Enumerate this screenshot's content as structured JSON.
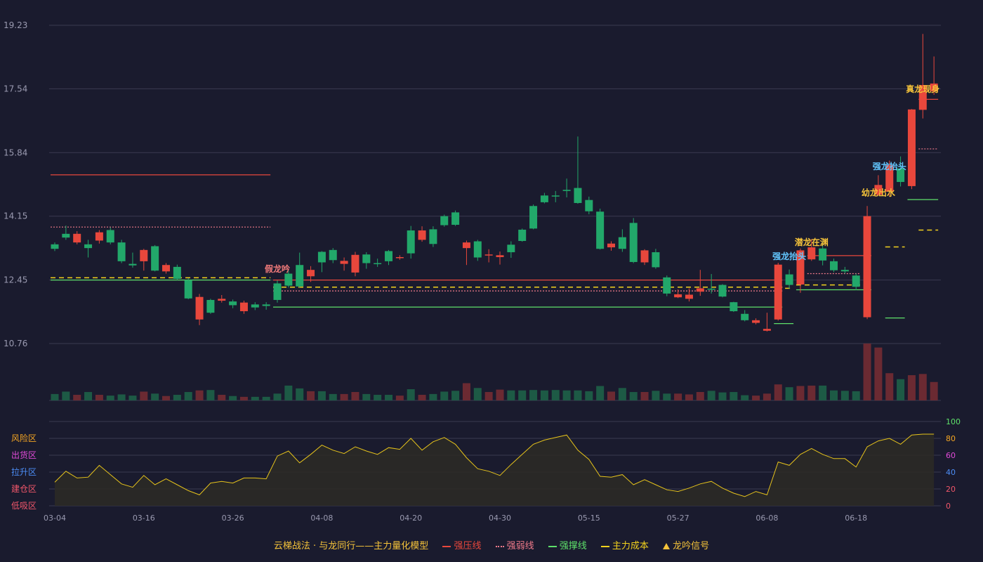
{
  "colors": {
    "background": "#1a1b2e",
    "up": "#e8473c",
    "down": "#22a86a",
    "up_volume": "#6b2a32",
    "down_volume": "#1d5a45",
    "strong_pressure": "#e8473c",
    "weak_line": "#f07a8a",
    "support": "#5ee06a",
    "main_cost": "#f3d21d",
    "osc_line": "#e6c31b",
    "osc_fill": "#2d2a25",
    "signal_gold": "#f5c33a",
    "signal_blue": "#63c7ff",
    "signal_pink": "#f07a7a",
    "axis_text": "#9a9ab0",
    "grid": "#3a3b50"
  },
  "chart_data": {
    "type": "candlestick",
    "price_axis": {
      "ticks": [
        "19.23",
        "17.54",
        "15.84",
        "14.15",
        "12.45",
        "10.76"
      ],
      "range": [
        10.76,
        19.23
      ]
    },
    "x_ticks": [
      {
        "index": 0,
        "label": "03-04"
      },
      {
        "index": 8,
        "label": "03-16"
      },
      {
        "index": 16,
        "label": "03-26"
      },
      {
        "index": 24,
        "label": "04-08"
      },
      {
        "index": 32,
        "label": "04-20"
      },
      {
        "index": 40,
        "label": "04-30"
      },
      {
        "index": 48,
        "label": "05-15"
      },
      {
        "index": 56,
        "label": "05-27"
      },
      {
        "index": 64,
        "label": "06-08"
      },
      {
        "index": 72,
        "label": "06-18"
      }
    ],
    "candles": [
      [
        13.4,
        13.28,
        13.45,
        13.22
      ],
      [
        13.68,
        13.58,
        13.9,
        13.52
      ],
      [
        13.45,
        13.68,
        13.75,
        13.4
      ],
      [
        13.4,
        13.3,
        13.52,
        13.05
      ],
      [
        13.5,
        13.72,
        13.78,
        13.42
      ],
      [
        13.78,
        13.45,
        13.85,
        13.4
      ],
      [
        13.45,
        12.95,
        13.52,
        12.9
      ],
      [
        12.88,
        12.84,
        13.18,
        12.78
      ],
      [
        12.95,
        13.25,
        13.28,
        12.7
      ],
      [
        13.35,
        12.7,
        13.38,
        12.68
      ],
      [
        12.68,
        12.85,
        12.9,
        12.62
      ],
      [
        12.8,
        12.48,
        12.86,
        12.45
      ],
      [
        12.45,
        11.96,
        12.5,
        11.94
      ],
      [
        11.4,
        12.0,
        12.08,
        11.25
      ],
      [
        11.92,
        11.58,
        11.95,
        11.55
      ],
      [
        11.9,
        11.95,
        12.05,
        11.85
      ],
      [
        11.88,
        11.78,
        11.93,
        11.7
      ],
      [
        11.62,
        11.85,
        11.9,
        11.55
      ],
      [
        11.8,
        11.72,
        11.86,
        11.65
      ],
      [
        11.8,
        11.76,
        11.86,
        11.66
      ],
      [
        12.36,
        11.92,
        12.44,
        11.85
      ],
      [
        12.62,
        12.3,
        12.7,
        12.25
      ],
      [
        12.85,
        12.28,
        13.18,
        12.25
      ],
      [
        12.55,
        12.72,
        12.82,
        12.4
      ],
      [
        13.2,
        12.92,
        13.22,
        12.66
      ],
      [
        13.25,
        12.98,
        13.3,
        12.9
      ],
      [
        12.88,
        12.96,
        13.05,
        12.7
      ],
      [
        12.65,
        13.12,
        13.2,
        12.55
      ],
      [
        13.13,
        12.9,
        13.19,
        12.75
      ],
      [
        12.9,
        12.88,
        13.02,
        12.8
      ],
      [
        13.22,
        12.95,
        13.25,
        12.85
      ],
      [
        13.05,
        13.06,
        13.11,
        12.99
      ],
      [
        13.77,
        13.16,
        13.89,
        13.02
      ],
      [
        13.52,
        13.77,
        13.88,
        13.47
      ],
      [
        13.8,
        13.41,
        13.88,
        13.33
      ],
      [
        14.15,
        13.91,
        14.19,
        13.87
      ],
      [
        14.25,
        13.92,
        14.3,
        13.89
      ],
      [
        13.3,
        13.45,
        13.5,
        12.85
      ],
      [
        13.48,
        13.05,
        13.52,
        12.96
      ],
      [
        13.12,
        13.13,
        13.27,
        12.92
      ],
      [
        13.06,
        13.11,
        13.21,
        12.86
      ],
      [
        13.39,
        13.19,
        13.48,
        13.04
      ],
      [
        13.79,
        13.49,
        13.82,
        13.47
      ],
      [
        14.42,
        13.82,
        14.46,
        13.8
      ],
      [
        14.7,
        14.52,
        14.77,
        14.49
      ],
      [
        14.7,
        14.68,
        14.82,
        14.52
      ],
      [
        14.85,
        14.82,
        15.15,
        14.65
      ],
      [
        14.9,
        14.5,
        16.27,
        14.48
      ],
      [
        14.58,
        14.28,
        14.67,
        14.2
      ],
      [
        14.27,
        13.28,
        14.35,
        13.26
      ],
      [
        13.32,
        13.42,
        13.48,
        13.23
      ],
      [
        13.59,
        13.28,
        13.8,
        13.2
      ],
      [
        13.97,
        12.93,
        14.1,
        12.9
      ],
      [
        12.92,
        13.24,
        13.27,
        12.85
      ],
      [
        13.19,
        12.79,
        13.28,
        12.75
      ],
      [
        12.52,
        12.09,
        12.57,
        12.02
      ],
      [
        11.99,
        12.07,
        12.2,
        11.97
      ],
      [
        11.95,
        12.06,
        12.23,
        11.88
      ],
      [
        12.14,
        12.23,
        12.72,
        12.03
      ],
      [
        12.22,
        12.21,
        12.61,
        12.09
      ],
      [
        12.32,
        12.01,
        12.34,
        11.99
      ],
      [
        11.86,
        11.62,
        11.87,
        11.6
      ],
      [
        11.55,
        11.38,
        11.65,
        11.35
      ],
      [
        11.31,
        11.38,
        11.43,
        11.27
      ],
      [
        11.1,
        11.15,
        11.58,
        11.08
      ],
      [
        11.4,
        12.86,
        12.91,
        11.37
      ],
      [
        12.6,
        12.32,
        12.73,
        12.22
      ],
      [
        12.33,
        13.24,
        13.29,
        12.11
      ],
      [
        13.0,
        13.32,
        13.54,
        12.96
      ],
      [
        13.29,
        12.97,
        13.48,
        12.84
      ],
      [
        12.95,
        12.71,
        13.02,
        12.66
      ],
      [
        12.72,
        12.68,
        12.8,
        12.62
      ],
      [
        12.57,
        12.27,
        12.62,
        12.18
      ],
      [
        11.46,
        14.15,
        14.42,
        11.41
      ],
      [
        14.72,
        14.98,
        15.24,
        14.69
      ],
      [
        14.8,
        15.51,
        15.63,
        14.68
      ],
      [
        15.42,
        15.06,
        15.74,
        14.94
      ],
      [
        14.95,
        16.99,
        17.0,
        14.87
      ],
      [
        16.98,
        17.64,
        19.0,
        16.75
      ],
      [
        17.47,
        17.68,
        18.4,
        17.38
      ]
    ],
    "volume": [
      16,
      22,
      14,
      21,
      14,
      12,
      15,
      12,
      22,
      17,
      11,
      14,
      21,
      25,
      26,
      14,
      11,
      9,
      9,
      9,
      17,
      37,
      30,
      23,
      23,
      16,
      16,
      21,
      16,
      14,
      14,
      12,
      28,
      14,
      16,
      22,
      24,
      43,
      31,
      21,
      27,
      25,
      25,
      26,
      25,
      26,
      25,
      25,
      23,
      36,
      22,
      31,
      21,
      21,
      24,
      17,
      17,
      15,
      21,
      24,
      20,
      21,
      13,
      12,
      17,
      40,
      33,
      36,
      37,
      37,
      25,
      24,
      23,
      142,
      132,
      68,
      53,
      63,
      66,
      46
    ],
    "lines": {
      "strong_pressure": [
        {
          "from": 0,
          "to": 19,
          "price": 15.25
        },
        {
          "from": 20,
          "to": 65,
          "price": 12.45
        },
        {
          "from": 68,
          "to": 73,
          "price": 13.1
        },
        {
          "from": 78,
          "to": 79,
          "price": 17.26
        }
      ],
      "weak": [
        {
          "from": 0,
          "to": 19,
          "price": 13.86
        },
        {
          "from": 20,
          "to": 65,
          "price": 12.16
        },
        {
          "from": 68,
          "to": 72,
          "price": 12.62
        },
        {
          "from": 78,
          "to": 79,
          "price": 15.94
        }
      ],
      "support": [
        {
          "from": 0,
          "to": 19,
          "price": 12.45
        },
        {
          "from": 20,
          "to": 65,
          "price": 11.73
        },
        {
          "from": 67,
          "to": 73,
          "price": 12.19
        },
        {
          "from": 77,
          "to": 79,
          "price": 14.59
        },
        {
          "from": 65,
          "to": 66,
          "price": 11.29
        },
        {
          "from": 75,
          "to": 76,
          "price": 11.44
        }
      ],
      "main_cost": [
        {
          "from": 0,
          "to": 19,
          "price": 12.51
        },
        {
          "from": 20,
          "to": 65,
          "price": 12.26
        },
        {
          "from": 66,
          "to": 66,
          "price": 12.23
        },
        {
          "from": 67,
          "to": 73,
          "price": 12.32
        },
        {
          "from": 75,
          "to": 76,
          "price": 13.33
        },
        {
          "from": 78,
          "to": 79,
          "price": 13.78
        }
      ]
    },
    "signals": [
      {
        "index": 20,
        "text": "假龙吟",
        "color": "pink",
        "price": 12.67
      },
      {
        "index": 66,
        "text": "强龙抬头",
        "color": "blue",
        "price": 13.0
      },
      {
        "index": 68,
        "text": "潜龙在渊",
        "color": "gold",
        "price": 13.38
      },
      {
        "index": 74,
        "text": "幼龙出水",
        "color": "gold",
        "price": 14.7
      },
      {
        "index": 75,
        "text": "强龙抬头",
        "color": "blue",
        "price": 15.4
      },
      {
        "index": 78,
        "text": "真龙现身",
        "color": "gold",
        "price": 17.45
      }
    ],
    "oscillator": {
      "range": [
        0,
        100
      ],
      "right_ticks": [
        100,
        80,
        60,
        40,
        20,
        0
      ],
      "zones": [
        "风险区",
        "出货区",
        "拉升区",
        "建仓区",
        "低吸区"
      ],
      "values": [
        28,
        41,
        33,
        34,
        48,
        37,
        26,
        22,
        36,
        25,
        32,
        25,
        18,
        13,
        27,
        29,
        27,
        33,
        33,
        32,
        59,
        65,
        51,
        61,
        72,
        66,
        62,
        70,
        65,
        61,
        69,
        67,
        80,
        66,
        76,
        81,
        73,
        57,
        44,
        41,
        36,
        49,
        61,
        73,
        78,
        81,
        84,
        66,
        55,
        35,
        34,
        37,
        25,
        31,
        25,
        19,
        17,
        21,
        26,
        29,
        21,
        15,
        11,
        17,
        13,
        52,
        48,
        61,
        68,
        61,
        56,
        56,
        46,
        70,
        77,
        80,
        73,
        84,
        85,
        85
      ]
    }
  },
  "legend": {
    "title": "云梯战法 · 与龙同行——主力量化模型",
    "items": [
      "强压线",
      "强弱线",
      "强撑线",
      "主力成本",
      "龙吟信号"
    ]
  }
}
